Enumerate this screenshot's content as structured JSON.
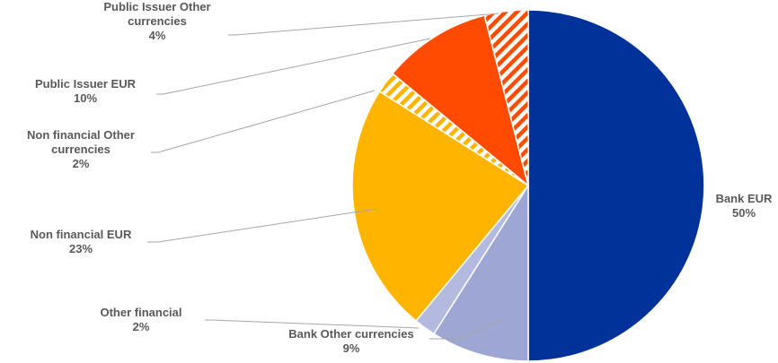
{
  "chart_data": {
    "type": "pie",
    "title": "",
    "slices": [
      {
        "label": "Bank EUR",
        "value": 50,
        "value_label": "50%",
        "color": "#003299",
        "pattern": "solid"
      },
      {
        "label": "Bank Other currencies",
        "value": 9,
        "value_label": "9%",
        "color": "#9ea6d4",
        "pattern": "solid"
      },
      {
        "label": "Other financial",
        "value": 2,
        "value_label": "2%",
        "color": "#b4b9e0",
        "pattern": "solid"
      },
      {
        "label": "Non financial EUR",
        "value": 23,
        "value_label": "23%",
        "color": "#ffb400",
        "pattern": "solid"
      },
      {
        "label": "Non financial Other currencies",
        "value": 2,
        "value_label": "2%",
        "color": "#ffb400",
        "pattern": "hatched"
      },
      {
        "label": "Public Issuer EUR",
        "value": 10,
        "value_label": "10%",
        "color": "#ff4b00",
        "pattern": "solid"
      },
      {
        "label": "Public Issuer Other currencies",
        "value": 4,
        "value_label": "4%",
        "color": "#ff4b00",
        "pattern": "hatched"
      }
    ],
    "legend": "none",
    "data_labels": "outside-with-leader-lines"
  }
}
